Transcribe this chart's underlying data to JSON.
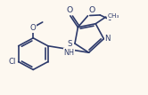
{
  "bg_color": "#fdf8f0",
  "line_color": "#2d3a6b",
  "lw": 1.2,
  "fs": 6.2,
  "xlim": [
    -3.5,
    5.2
  ],
  "ylim": [
    -2.8,
    3.2
  ]
}
